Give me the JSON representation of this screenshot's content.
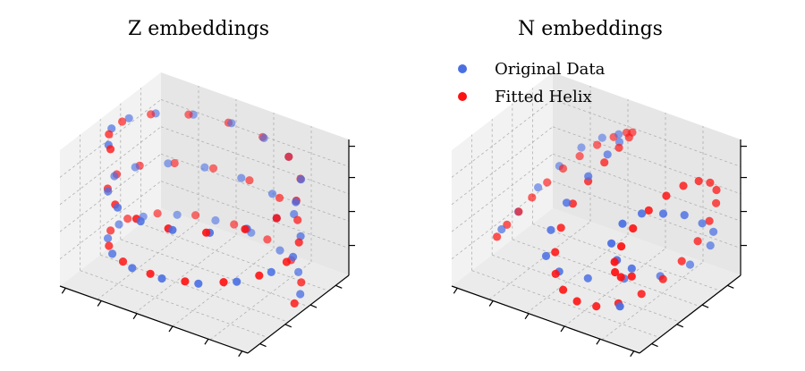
{
  "colors": {
    "original": "#4a6fe3",
    "fitted": "#ff1111"
  },
  "chart_data": [
    {
      "type": "scatter3d",
      "title": "Z embeddings",
      "grid": true,
      "legend": "none",
      "series": [
        {
          "name": "Original Data",
          "color": "#4a6fe3",
          "x": [
            0.94,
            0.73,
            0.39,
            0.01,
            -0.37,
            -0.7,
            -0.92,
            -1.0,
            -0.91,
            -0.68,
            -0.34,
            0.04,
            0.42,
            0.74,
            0.95,
            1.0,
            0.88,
            0.63,
            0.28,
            -0.1,
            -0.47,
            -0.77,
            -0.96,
            -1.0,
            -0.86,
            -0.58,
            -0.22,
            0.16,
            0.52,
            0.81,
            0.97,
            0.99,
            0.83,
            0.53,
            0.17,
            -0.21,
            -0.57,
            -0.85,
            -0.98,
            -0.98,
            -0.8
          ],
          "y": [
            0.34,
            0.69,
            0.92,
            1.0,
            0.93,
            0.71,
            0.38,
            0.0,
            -0.41,
            -0.74,
            -0.94,
            -1.0,
            -0.91,
            -0.67,
            -0.31,
            0.07,
            0.46,
            0.78,
            0.96,
            0.99,
            0.88,
            0.64,
            0.28,
            -0.1,
            -0.5,
            -0.81,
            -0.98,
            -0.99,
            -0.85,
            -0.58,
            -0.23,
            0.15,
            0.56,
            0.85,
            0.98,
            0.98,
            0.82,
            0.52,
            0.18,
            -0.2,
            -0.6
          ],
          "z": [
            0.0,
            0.05,
            0.1,
            0.15,
            0.2,
            0.25,
            0.3,
            0.35,
            0.4,
            0.45,
            0.5,
            0.55,
            0.6,
            0.65,
            0.7,
            0.75,
            0.8,
            0.85,
            0.9,
            0.95,
            1.0,
            1.05,
            1.1,
            1.15,
            1.2,
            1.25,
            1.3,
            1.35,
            1.4,
            1.45,
            1.5,
            1.55,
            1.6,
            1.65,
            1.7,
            1.75,
            1.8,
            1.85,
            1.9,
            1.95,
            2.0
          ]
        },
        {
          "name": "Fitted Helix",
          "color": "#ff1111",
          "x": [
            0.99,
            0.86,
            0.58,
            0.21,
            -0.18,
            -0.55,
            -0.84,
            -0.99,
            -0.97,
            -0.79,
            -0.48,
            -0.1,
            0.29,
            0.64,
            0.89,
            1.0,
            0.93,
            0.72,
            0.38,
            -0.01,
            -0.39,
            -0.72,
            -0.94,
            -1.0,
            -0.89,
            -0.63,
            -0.28,
            0.11,
            0.49,
            0.8,
            0.97,
            0.98,
            0.82,
            0.53,
            0.15,
            -0.24,
            -0.61,
            -0.88,
            -1.0,
            -0.94,
            -0.74
          ],
          "y": [
            0.12,
            0.51,
            0.81,
            0.98,
            0.98,
            0.83,
            0.54,
            0.17,
            -0.24,
            -0.61,
            -0.88,
            -0.99,
            -0.96,
            -0.77,
            -0.46,
            -0.07,
            0.33,
            0.69,
            0.93,
            1.0,
            0.92,
            0.69,
            0.34,
            -0.05,
            -0.45,
            -0.77,
            -0.96,
            -0.99,
            -0.87,
            -0.6,
            -0.23,
            0.18,
            0.57,
            0.85,
            0.99,
            0.97,
            0.79,
            0.47,
            0.07,
            -0.33,
            -0.67
          ],
          "z": [
            0.0,
            0.05,
            0.1,
            0.15,
            0.2,
            0.25,
            0.3,
            0.35,
            0.4,
            0.45,
            0.5,
            0.55,
            0.6,
            0.65,
            0.7,
            0.75,
            0.8,
            0.85,
            0.9,
            0.95,
            1.0,
            1.05,
            1.1,
            1.15,
            1.2,
            1.25,
            1.3,
            1.35,
            1.4,
            1.45,
            1.5,
            1.55,
            1.6,
            1.65,
            1.7,
            1.75,
            1.8,
            1.85,
            1.9,
            1.95,
            2.0
          ]
        }
      ]
    },
    {
      "type": "scatter3d",
      "title": "N embeddings",
      "grid": true,
      "legend": "top-left",
      "series": [
        {
          "name": "Original Data",
          "color": "#4a6fe3",
          "x": [
            -2.0,
            -1.93,
            -1.79,
            -1.56,
            -1.26,
            -0.88,
            -0.44,
            -0.1,
            0.05,
            0.03,
            -0.1,
            -0.2,
            -0.15,
            0.05,
            0.4,
            0.82,
            1.18,
            1.5,
            1.76,
            1.94,
            2.0,
            1.96,
            1.84,
            1.66,
            1.48,
            1.38,
            1.4,
            1.48,
            1.58
          ],
          "y": [
            -0.2,
            0.1,
            0.4,
            0.65,
            0.85,
            0.95,
            0.9,
            0.6,
            0.2,
            -0.2,
            -0.55,
            -0.8,
            -0.95,
            -0.85,
            -0.55,
            -0.15,
            0.3,
            0.65,
            0.85,
            0.75,
            0.45,
            0.1,
            -0.25,
            -0.55,
            -0.8,
            -0.95,
            -0.85,
            -0.6,
            -0.95
          ],
          "z": [
            0.05,
            0.15,
            0.35,
            0.55,
            0.75,
            0.9,
            1.05,
            1.15,
            1.2,
            1.1,
            0.9,
            0.65,
            0.4,
            0.2,
            0.05,
            -0.05,
            -0.15,
            -0.1,
            0.1,
            0.35,
            0.6,
            0.85,
            1.0,
            1.1,
            1.05,
            0.85,
            0.6,
            0.4,
            0.1
          ]
        },
        {
          "name": "Fitted Helix",
          "color": "#ff1111",
          "x": [
            -2.0,
            -1.96,
            -1.88,
            -1.76,
            -1.6,
            -1.4,
            -1.16,
            -0.88,
            -0.58,
            -0.3,
            -0.08,
            0.04,
            0.06,
            0.0,
            -0.1,
            -0.18,
            -0.2,
            -0.12,
            0.04,
            0.26,
            0.52,
            0.8,
            1.06,
            1.3,
            1.5,
            1.66,
            1.8,
            1.9,
            1.97,
            2.0,
            1.98,
            1.93,
            1.85,
            1.75,
            1.64,
            1.53,
            1.45,
            1.4,
            1.39,
            1.42,
            1.48
          ],
          "y": [
            -0.3,
            -0.12,
            0.06,
            0.24,
            0.42,
            0.58,
            0.72,
            0.84,
            0.92,
            0.94,
            0.86,
            0.68,
            0.44,
            0.18,
            -0.08,
            -0.34,
            -0.58,
            -0.78,
            -0.92,
            -0.96,
            -0.9,
            -0.74,
            -0.5,
            -0.22,
            0.06,
            0.32,
            0.54,
            0.7,
            0.78,
            0.76,
            0.64,
            0.44,
            0.18,
            -0.1,
            -0.38,
            -0.62,
            -0.8,
            -0.9,
            -0.88,
            -0.78,
            -0.6
          ],
          "z": [
            0.0,
            0.08,
            0.18,
            0.3,
            0.44,
            0.58,
            0.72,
            0.86,
            0.98,
            1.08,
            1.16,
            1.2,
            1.18,
            1.1,
            0.96,
            0.78,
            0.58,
            0.38,
            0.2,
            0.06,
            -0.06,
            -0.14,
            -0.16,
            -0.12,
            -0.02,
            0.12,
            0.3,
            0.5,
            0.7,
            0.88,
            1.02,
            1.12,
            1.16,
            1.14,
            1.06,
            0.92,
            0.76,
            0.6,
            0.46,
            0.36,
            0.3
          ]
        }
      ]
    }
  ]
}
